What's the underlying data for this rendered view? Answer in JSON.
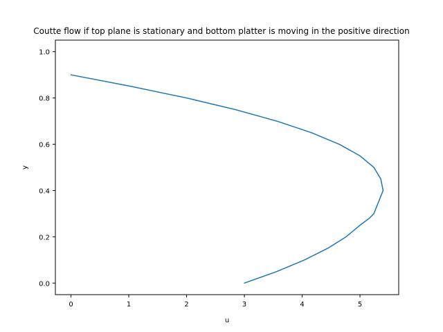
{
  "chart_data": {
    "type": "line",
    "title": "Coutte flow if top plane is stationary and bottom platter is moving in the positive direction",
    "xlabel": "u",
    "ylabel": "y",
    "xlim": [
      -0.27,
      5.67
    ],
    "ylim": [
      -0.05,
      1.05
    ],
    "xticks": [
      0,
      1,
      2,
      3,
      4,
      5
    ],
    "yticks": [
      0.0,
      0.2,
      0.4,
      0.6,
      0.8,
      1.0
    ],
    "xtick_labels": [
      "0",
      "1",
      "2",
      "3",
      "4",
      "5"
    ],
    "ytick_labels": [
      "0.0",
      "0.2",
      "0.4",
      "0.6",
      "0.8",
      "1.0"
    ],
    "grid": false,
    "series": [
      {
        "color": "#1f77b4",
        "x": [
          3.0,
          3.56,
          4.04,
          4.44,
          4.76,
          5.0,
          5.16,
          5.24,
          5.4,
          5.36,
          5.24,
          5.0,
          4.64,
          4.16,
          3.56,
          2.84,
          2.0,
          1.04,
          0.0
        ],
        "y": [
          0.0,
          0.05,
          0.1,
          0.15,
          0.2,
          0.25,
          0.28,
          0.3,
          0.4,
          0.45,
          0.5,
          0.55,
          0.6,
          0.65,
          0.7,
          0.75,
          0.8,
          0.85,
          0.9
        ]
      }
    ]
  }
}
